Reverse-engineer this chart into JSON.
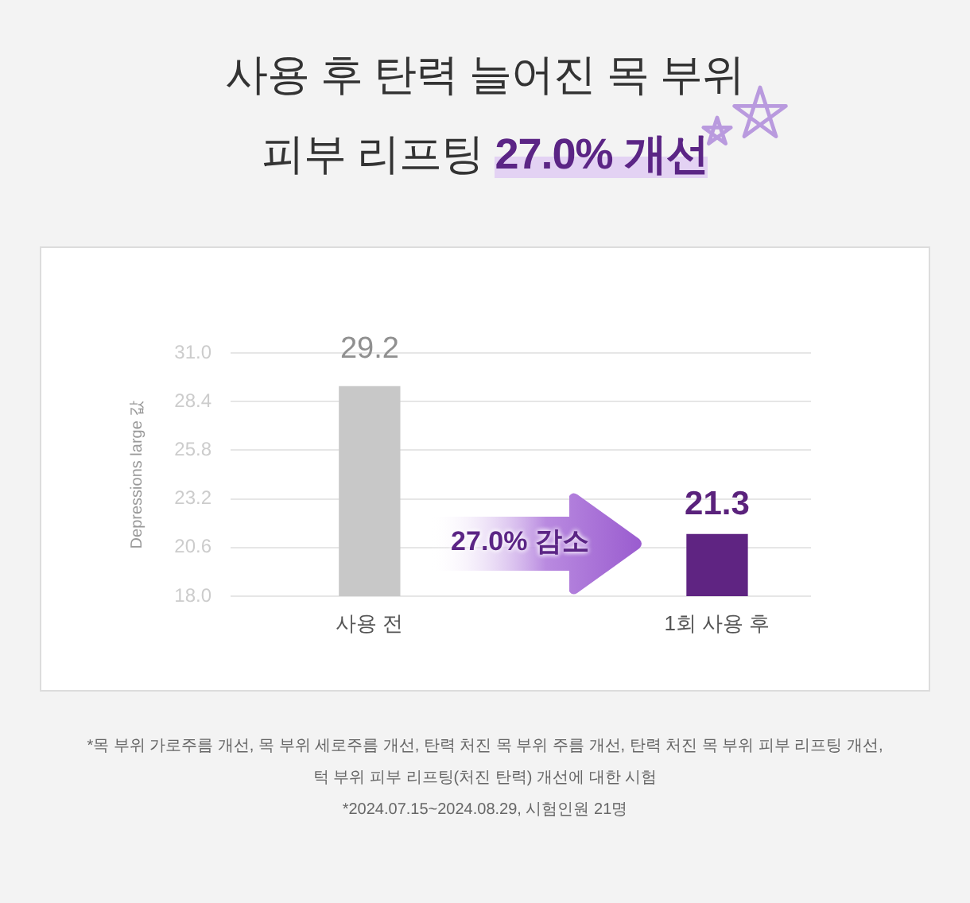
{
  "chart_data": {
    "type": "bar",
    "title": "사용 후 탄력 늘어진 목 부위\n피부 리프팅 27.0% 개선",
    "ylabel": "Depressions large 값",
    "categories": [
      "사용 전",
      "1회 사용 후"
    ],
    "values": [
      29.2,
      21.3
    ],
    "colors": [
      "#c8c8c8",
      "#5f2482"
    ],
    "ylim": [
      18.0,
      31.0
    ],
    "yticks": [
      {
        "value": 18,
        "label": "18.0"
      },
      20.6,
      23.2,
      25.8,
      28.4,
      {
        "value": 31,
        "label": "31.0"
      }
    ],
    "grid": "y",
    "data_labels": true,
    "annotations": [
      "27.0% 감소",
      "*목 부위 가로주름 개선, 목 부위 세로주름 개선, 탄력 처진 목 부위 주름 개선, 탄력 처진 목 부위 피부 리프팅 개선,",
      "턱 부위 피부 리프팅(처진 탄력) 개선에 대한 시험",
      "*2024.07.15~2024.08.29, 시험인원 21명"
    ]
  }
}
